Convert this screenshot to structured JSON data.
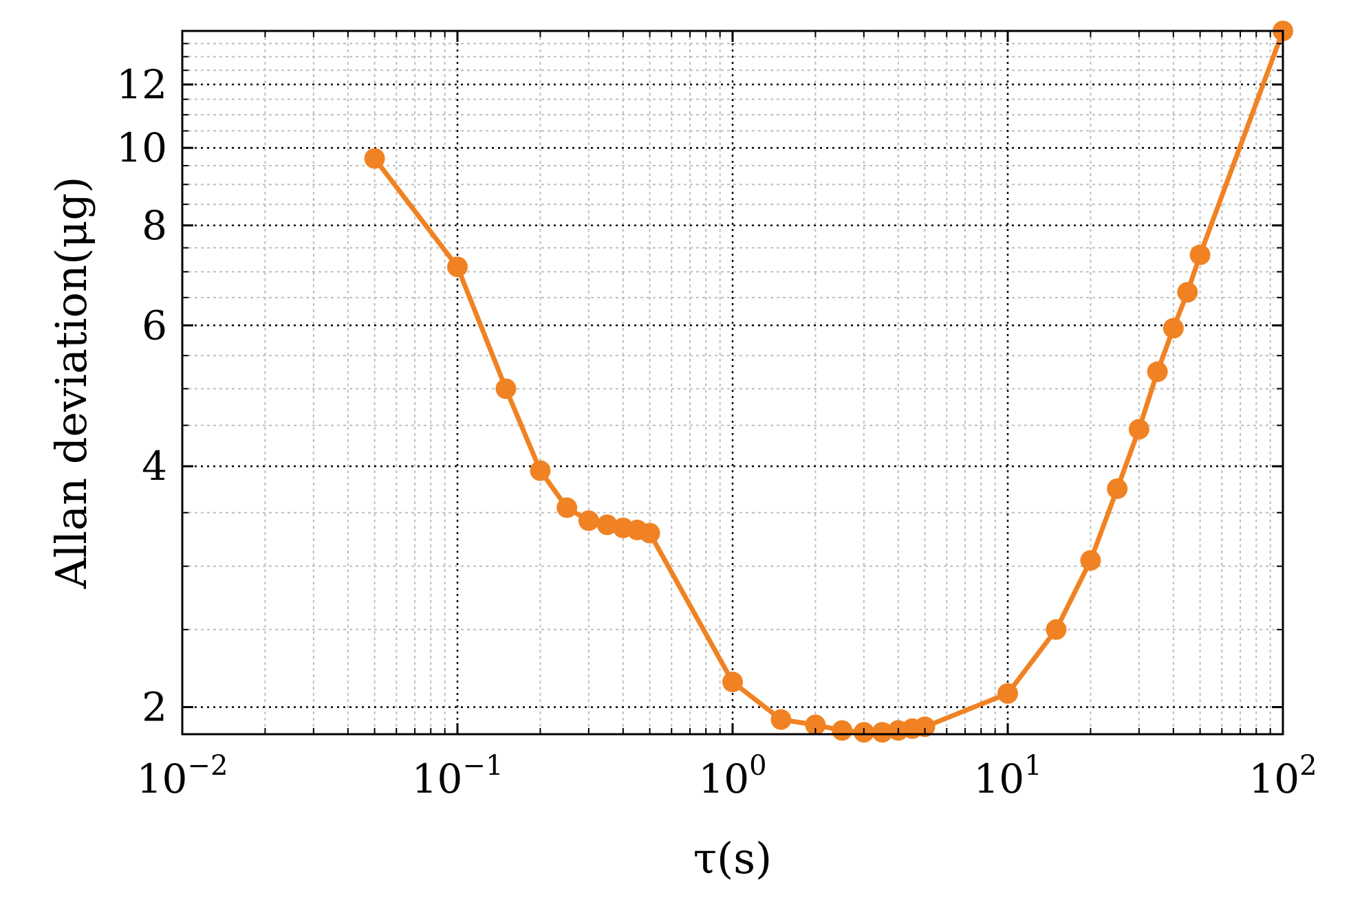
{
  "chart_data": {
    "type": "line",
    "xscale": "log",
    "yscale": "log",
    "xlim": [
      0.01,
      100
    ],
    "ylim": [
      1.85,
      14
    ],
    "xlabel": "τ(s)",
    "ylabel": "Allan deviation(μg)",
    "grid": true,
    "x_ticks": [
      {
        "value": 0.01,
        "base": "10",
        "exp": "−2"
      },
      {
        "value": 0.1,
        "base": "10",
        "exp": "−1"
      },
      {
        "value": 1,
        "base": "10",
        "exp": "0"
      },
      {
        "value": 10,
        "base": "10",
        "exp": "1"
      },
      {
        "value": 100,
        "base": "10",
        "exp": "2"
      }
    ],
    "y_ticks": [
      {
        "value": 2,
        "label": "2"
      },
      {
        "value": 4,
        "label": "4"
      },
      {
        "value": 6,
        "label": "6"
      },
      {
        "value": 8,
        "label": "8"
      },
      {
        "value": 10,
        "label": "10"
      },
      {
        "value": 12,
        "label": "12"
      }
    ],
    "series": [
      {
        "color": "#F08223",
        "marker": "circle",
        "x": [
          0.05,
          0.1,
          0.15,
          0.2,
          0.25,
          0.3,
          0.35,
          0.4,
          0.45,
          0.5,
          1,
          1.5,
          2,
          2.5,
          3,
          3.5,
          4,
          4.5,
          5,
          10,
          15,
          20,
          25,
          30,
          35,
          40,
          45,
          50,
          100
        ],
        "y": [
          9.7,
          7.1,
          5.0,
          3.95,
          3.55,
          3.42,
          3.38,
          3.35,
          3.33,
          3.3,
          2.15,
          1.93,
          1.9,
          1.87,
          1.86,
          1.86,
          1.87,
          1.88,
          1.89,
          2.08,
          2.5,
          3.05,
          3.75,
          4.45,
          5.25,
          5.95,
          6.6,
          7.35,
          14.0
        ]
      }
    ]
  }
}
